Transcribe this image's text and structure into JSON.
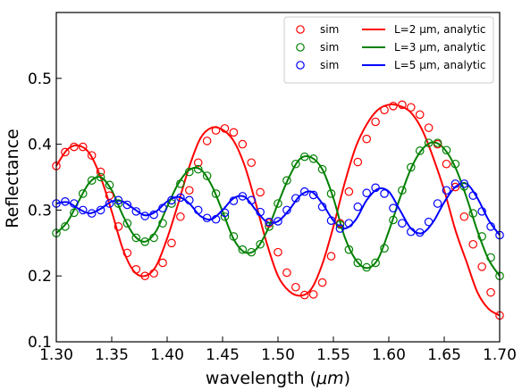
{
  "chart_data": {
    "type": "line",
    "xlabel": "wavelength (",
    "xlabel_unit": "μm",
    "xlabel_close": ")",
    "ylabel": "Reflectance",
    "xlim": [
      1.3,
      1.7
    ],
    "ylim": [
      0.1,
      0.6
    ],
    "xticks": [
      1.3,
      1.35,
      1.4,
      1.45,
      1.5,
      1.55,
      1.6,
      1.65,
      1.7
    ],
    "xtick_labels": [
      "1.30",
      "1.35",
      "1.40",
      "1.45",
      "1.50",
      "1.55",
      "1.60",
      "1.65",
      "1.70"
    ],
    "yticks": [
      0.1,
      0.2,
      0.3,
      0.4,
      0.5
    ],
    "ytick_labels": [
      "0.1",
      "0.2",
      "0.3",
      "0.4",
      "0.5"
    ],
    "legend_position": "top-right",
    "series": [
      {
        "name": "L=2 μm, analytic",
        "kind": "line",
        "color": "#ff0000",
        "x": [
          1.3,
          1.31,
          1.32,
          1.33,
          1.34,
          1.35,
          1.36,
          1.37,
          1.38,
          1.39,
          1.4,
          1.41,
          1.42,
          1.43,
          1.44,
          1.45,
          1.46,
          1.47,
          1.48,
          1.49,
          1.5,
          1.51,
          1.52,
          1.53,
          1.54,
          1.55,
          1.56,
          1.57,
          1.58,
          1.59,
          1.6,
          1.61,
          1.62,
          1.63,
          1.64,
          1.65,
          1.66,
          1.67,
          1.68,
          1.69,
          1.7
        ],
        "y": [
          0.367,
          0.392,
          0.398,
          0.386,
          0.35,
          0.298,
          0.241,
          0.207,
          0.2,
          0.215,
          0.257,
          0.31,
          0.366,
          0.409,
          0.425,
          0.422,
          0.405,
          0.367,
          0.31,
          0.249,
          0.2,
          0.177,
          0.17,
          0.18,
          0.218,
          0.275,
          0.34,
          0.395,
          0.43,
          0.452,
          0.46,
          0.458,
          0.448,
          0.422,
          0.38,
          0.33,
          0.27,
          0.222,
          0.175,
          0.15,
          0.14
        ]
      },
      {
        "name": "L=3 μm, analytic",
        "kind": "line",
        "color": "#008000",
        "x": [
          1.3,
          1.31,
          1.32,
          1.33,
          1.34,
          1.35,
          1.36,
          1.37,
          1.38,
          1.39,
          1.4,
          1.41,
          1.42,
          1.43,
          1.44,
          1.45,
          1.46,
          1.47,
          1.48,
          1.49,
          1.5,
          1.51,
          1.52,
          1.53,
          1.54,
          1.55,
          1.56,
          1.57,
          1.58,
          1.59,
          1.6,
          1.61,
          1.62,
          1.63,
          1.64,
          1.65,
          1.66,
          1.67,
          1.68,
          1.69,
          1.7
        ],
        "y": [
          0.265,
          0.282,
          0.313,
          0.342,
          0.35,
          0.33,
          0.292,
          0.262,
          0.252,
          0.268,
          0.305,
          0.34,
          0.361,
          0.362,
          0.338,
          0.298,
          0.256,
          0.236,
          0.24,
          0.268,
          0.31,
          0.35,
          0.378,
          0.38,
          0.362,
          0.318,
          0.26,
          0.225,
          0.212,
          0.225,
          0.268,
          0.318,
          0.363,
          0.392,
          0.403,
          0.393,
          0.365,
          0.32,
          0.268,
          0.225,
          0.2
        ]
      },
      {
        "name": "L=5 μm, analytic",
        "kind": "line",
        "color": "#0000ff",
        "x": [
          1.3,
          1.31,
          1.32,
          1.33,
          1.34,
          1.35,
          1.36,
          1.37,
          1.38,
          1.39,
          1.4,
          1.41,
          1.42,
          1.43,
          1.44,
          1.45,
          1.46,
          1.47,
          1.48,
          1.49,
          1.5,
          1.51,
          1.52,
          1.53,
          1.54,
          1.55,
          1.56,
          1.57,
          1.58,
          1.59,
          1.6,
          1.61,
          1.62,
          1.63,
          1.64,
          1.65,
          1.66,
          1.67,
          1.68,
          1.69,
          1.7
        ],
        "y": [
          0.31,
          0.312,
          0.302,
          0.295,
          0.302,
          0.313,
          0.313,
          0.302,
          0.292,
          0.298,
          0.313,
          0.32,
          0.31,
          0.291,
          0.286,
          0.3,
          0.318,
          0.32,
          0.3,
          0.282,
          0.283,
          0.3,
          0.322,
          0.328,
          0.31,
          0.284,
          0.272,
          0.285,
          0.315,
          0.332,
          0.328,
          0.3,
          0.272,
          0.265,
          0.282,
          0.312,
          0.335,
          0.34,
          0.318,
          0.285,
          0.262
        ]
      },
      {
        "name": "sim",
        "kind": "markers",
        "color": "#ff0000",
        "x": [
          1.3,
          1.308,
          1.316,
          1.324,
          1.332,
          1.34,
          1.348,
          1.356,
          1.364,
          1.372,
          1.38,
          1.388,
          1.396,
          1.404,
          1.412,
          1.42,
          1.428,
          1.436,
          1.444,
          1.452,
          1.46,
          1.468,
          1.476,
          1.484,
          1.492,
          1.5,
          1.508,
          1.516,
          1.524,
          1.532,
          1.54,
          1.548,
          1.556,
          1.564,
          1.572,
          1.58,
          1.588,
          1.596,
          1.604,
          1.612,
          1.62,
          1.628,
          1.636,
          1.644,
          1.652,
          1.66,
          1.668,
          1.676,
          1.684,
          1.692,
          1.7
        ],
        "y": [
          0.367,
          0.388,
          0.396,
          0.396,
          0.383,
          0.358,
          0.322,
          0.275,
          0.235,
          0.21,
          0.2,
          0.204,
          0.22,
          0.25,
          0.29,
          0.33,
          0.372,
          0.405,
          0.421,
          0.424,
          0.418,
          0.4,
          0.372,
          0.327,
          0.28,
          0.236,
          0.205,
          0.183,
          0.171,
          0.172,
          0.19,
          0.23,
          0.28,
          0.328,
          0.373,
          0.408,
          0.434,
          0.452,
          0.458,
          0.46,
          0.456,
          0.445,
          0.425,
          0.4,
          0.37,
          0.335,
          0.29,
          0.248,
          0.214,
          0.175,
          0.14
        ]
      },
      {
        "name": "sim",
        "kind": "markers",
        "color": "#008000",
        "x": [
          1.3,
          1.308,
          1.316,
          1.324,
          1.332,
          1.34,
          1.348,
          1.356,
          1.364,
          1.372,
          1.38,
          1.388,
          1.396,
          1.404,
          1.412,
          1.42,
          1.428,
          1.436,
          1.444,
          1.452,
          1.46,
          1.468,
          1.476,
          1.484,
          1.492,
          1.5,
          1.508,
          1.516,
          1.524,
          1.532,
          1.54,
          1.548,
          1.556,
          1.564,
          1.572,
          1.58,
          1.588,
          1.596,
          1.604,
          1.612,
          1.62,
          1.628,
          1.636,
          1.644,
          1.652,
          1.66,
          1.668,
          1.676,
          1.684,
          1.692,
          1.7
        ],
        "y": [
          0.265,
          0.275,
          0.296,
          0.325,
          0.345,
          0.35,
          0.338,
          0.31,
          0.28,
          0.258,
          0.252,
          0.258,
          0.28,
          0.31,
          0.34,
          0.358,
          0.362,
          0.352,
          0.325,
          0.29,
          0.26,
          0.24,
          0.236,
          0.248,
          0.275,
          0.31,
          0.345,
          0.37,
          0.381,
          0.378,
          0.362,
          0.325,
          0.278,
          0.24,
          0.22,
          0.213,
          0.22,
          0.242,
          0.285,
          0.33,
          0.365,
          0.39,
          0.402,
          0.402,
          0.391,
          0.37,
          0.336,
          0.295,
          0.26,
          0.228,
          0.2
        ]
      },
      {
        "name": "sim",
        "kind": "markers",
        "color": "#0000ff",
        "x": [
          1.3,
          1.308,
          1.316,
          1.324,
          1.332,
          1.34,
          1.348,
          1.356,
          1.364,
          1.372,
          1.38,
          1.388,
          1.396,
          1.404,
          1.412,
          1.42,
          1.428,
          1.436,
          1.444,
          1.452,
          1.46,
          1.468,
          1.476,
          1.484,
          1.492,
          1.5,
          1.508,
          1.516,
          1.524,
          1.532,
          1.54,
          1.548,
          1.556,
          1.564,
          1.572,
          1.58,
          1.588,
          1.596,
          1.604,
          1.612,
          1.62,
          1.628,
          1.636,
          1.644,
          1.652,
          1.66,
          1.668,
          1.676,
          1.684,
          1.692,
          1.7
        ],
        "y": [
          0.31,
          0.313,
          0.31,
          0.3,
          0.295,
          0.3,
          0.31,
          0.315,
          0.308,
          0.298,
          0.291,
          0.293,
          0.303,
          0.315,
          0.319,
          0.315,
          0.3,
          0.288,
          0.286,
          0.296,
          0.314,
          0.321,
          0.315,
          0.297,
          0.282,
          0.283,
          0.3,
          0.318,
          0.328,
          0.323,
          0.305,
          0.284,
          0.272,
          0.28,
          0.305,
          0.326,
          0.334,
          0.325,
          0.303,
          0.28,
          0.267,
          0.266,
          0.282,
          0.31,
          0.33,
          0.34,
          0.34,
          0.322,
          0.298,
          0.275,
          0.262
        ]
      }
    ]
  }
}
